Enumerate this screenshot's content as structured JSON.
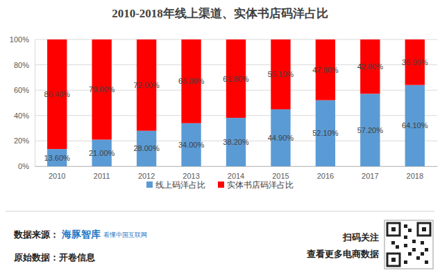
{
  "chart_data": {
    "type": "bar",
    "title": "2010-2018年线上渠道、实体书店码洋占比",
    "categories": [
      "2010",
      "2011",
      "2012",
      "2013",
      "2014",
      "2015",
      "2016",
      "2017",
      "2018"
    ],
    "series": [
      {
        "name": "线上码洋占比",
        "color": "#5b9bd5",
        "values": [
          13.6,
          21,
          28,
          34,
          38.2,
          44.9,
          52.1,
          57.2,
          64.1
        ],
        "value_labels": [
          "13.60%",
          "21.00%",
          "28.00%",
          "34.00%",
          "38.20%",
          "44.90%",
          "52.10%",
          "57.20%",
          "64.10%"
        ]
      },
      {
        "name": "实体书店码洋占比",
        "color": "#ff0000",
        "values": [
          86.4,
          79,
          72,
          66,
          61.8,
          55.1,
          47.9,
          42.8,
          35.9
        ],
        "value_labels": [
          "86.40%",
          "79.00%",
          "72.00%",
          "66.00%",
          "61.80%",
          "55.10%",
          "47.90%",
          "42.80%",
          "35.90%"
        ]
      }
    ],
    "ylim": [
      0,
      100
    ],
    "yticks": [
      {
        "value": 0,
        "label": "0%"
      },
      {
        "value": 20,
        "label": "20%"
      },
      {
        "value": 40,
        "label": "40%"
      },
      {
        "value": 60,
        "label": "60%"
      },
      {
        "value": 80,
        "label": "80%"
      },
      {
        "value": 100,
        "label": "100%"
      }
    ],
    "stacked": true,
    "data_labels": true,
    "grid": true,
    "legend": "bottom"
  },
  "footer": {
    "source_label": "数据来源：",
    "source_logo": "海豚智库",
    "source_slogan": "看懂中国互联网",
    "origin": "原始数据：开卷信息",
    "qr_caption": [
      "扫码关注",
      "查看更多电商数据"
    ]
  }
}
